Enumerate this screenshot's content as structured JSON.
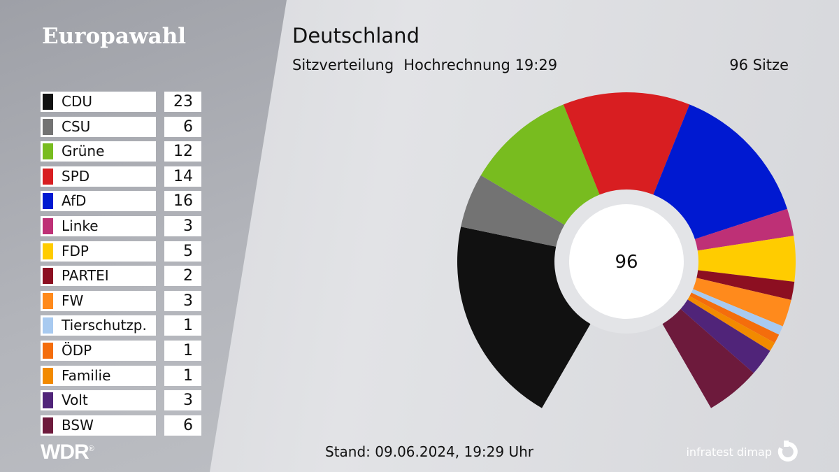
{
  "brand_title": "Europawahl",
  "title": "Deutschland",
  "subtitle": "Sitzverteilung",
  "projection": "Hochrechnung 19:29",
  "seats_label": "96 Sitze",
  "stand": "Stand: 09.06.2024, 19:29 Uhr",
  "broadcaster": "WDR",
  "source": "infratest dimap",
  "chart_data": {
    "type": "pie",
    "subtype": "donut",
    "title": "Sitzverteilung",
    "center_label": "96",
    "total": 96,
    "parties": [
      {
        "name": "CDU",
        "seats": 23,
        "color": "#111111"
      },
      {
        "name": "CSU",
        "seats": 6,
        "color": "#737373"
      },
      {
        "name": "Grüne",
        "seats": 12,
        "color": "#78bc1f"
      },
      {
        "name": "SPD",
        "seats": 14,
        "color": "#d81e21"
      },
      {
        "name": "AfD",
        "seats": 16,
        "color": "#0019d1"
      },
      {
        "name": "Linke",
        "seats": 3,
        "color": "#be3076"
      },
      {
        "name": "FDP",
        "seats": 5,
        "color": "#ffcc00"
      },
      {
        "name": "PARTEI",
        "seats": 2,
        "color": "#8c0f21"
      },
      {
        "name": "FW",
        "seats": 3,
        "color": "#ff8a1c"
      },
      {
        "name": "Tierschutzp.",
        "seats": 1,
        "color": "#a8caf0"
      },
      {
        "name": "ÖDP",
        "seats": 1,
        "color": "#f46d0c"
      },
      {
        "name": "Familie",
        "seats": 1,
        "color": "#f28a00"
      },
      {
        "name": "Volt",
        "seats": 3,
        "color": "#502479"
      },
      {
        "name": "BSW",
        "seats": 6,
        "color": "#6d1a3c"
      }
    ]
  }
}
